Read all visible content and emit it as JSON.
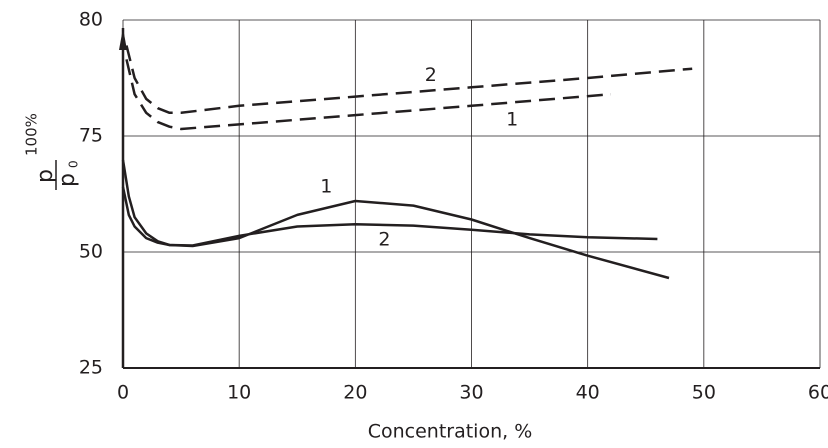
{
  "chart_data": {
    "type": "line",
    "xlabel": "Concentration, %",
    "ylabel": {
      "numerator": "p",
      "denominator": "p",
      "subscript": "0",
      "suffix": "100%"
    },
    "xlim": [
      0,
      60
    ],
    "xticks": [
      0,
      10,
      20,
      30,
      40,
      50,
      60
    ],
    "ylim": [
      25,
      80
    ],
    "yticks": [
      25,
      50,
      75,
      80
    ],
    "grid": true,
    "series": [
      {
        "name": "2",
        "color": "#231f20",
        "dash": true,
        "x": [
          0.3,
          1,
          2,
          3,
          4,
          5,
          10,
          20,
          30,
          40,
          49
        ],
        "values": [
          78.9,
          77.5,
          76.6,
          76.2,
          76.0,
          76.0,
          76.3,
          76.7,
          77.1,
          77.5,
          77.9
        ]
      },
      {
        "name": "1",
        "color": "#231f20",
        "dash": true,
        "x": [
          0.3,
          1,
          2,
          3,
          4,
          5,
          10,
          20,
          30,
          42
        ],
        "values": [
          78.3,
          76.8,
          76.0,
          75.6,
          75.4,
          75.3,
          75.5,
          75.9,
          76.3,
          76.8
        ]
      },
      {
        "name": "1",
        "color": "#231f20",
        "dash": false,
        "x": [
          0,
          0.5,
          1,
          2,
          3,
          4,
          6,
          10,
          15,
          20,
          25,
          30,
          35,
          40,
          47
        ],
        "values": [
          69.8,
          62,
          57.5,
          54,
          52.3,
          51.5,
          51.3,
          53,
          58,
          61,
          60,
          57,
          53,
          49.2,
          44.4
        ]
      },
      {
        "name": "2",
        "color": "#231f20",
        "dash": false,
        "x": [
          0,
          0.5,
          1,
          2,
          3,
          4,
          6,
          10,
          15,
          20,
          25,
          30,
          35,
          40,
          46
        ],
        "values": [
          64,
          58,
          55.5,
          53,
          52,
          51.5,
          51.4,
          53.5,
          55.5,
          56,
          55.7,
          54.8,
          53.8,
          53.2,
          52.8
        ]
      }
    ],
    "annotations": [
      {
        "text": "2",
        "x": 26.5,
        "y": 77.6
      },
      {
        "text": "1",
        "x": 33.5,
        "y": 75.7
      },
      {
        "text": "1",
        "x": 17.5,
        "y": 64
      },
      {
        "text": "2",
        "x": 22.5,
        "y": 52.6
      }
    ]
  }
}
